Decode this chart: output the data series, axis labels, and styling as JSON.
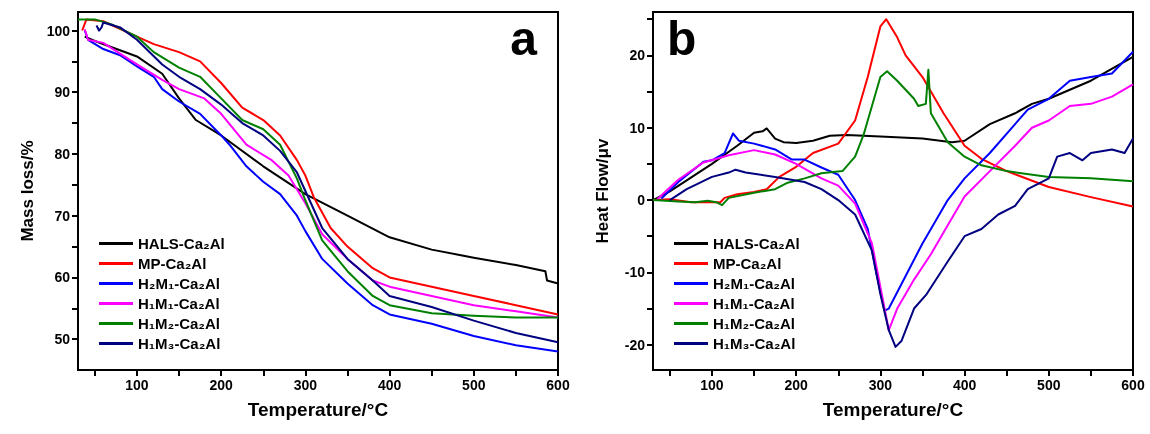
{
  "chart_data": [
    {
      "type": "line",
      "xlabel": "Temperature/°C",
      "ylabel": "Mass loss/%",
      "annotations": [
        "a"
      ],
      "legend": "bottom left",
      "grid": false,
      "marker": "none",
      "line_style": "solid",
      "xlim": [
        30,
        600
      ],
      "xticks": [
        {
          "value": 50,
          "label": null
        },
        100,
        {
          "value": 150,
          "label": null
        },
        200,
        {
          "value": 250,
          "label": null
        },
        300,
        {
          "value": 350,
          "label": null
        },
        400,
        {
          "value": 450,
          "label": null
        },
        500,
        {
          "value": 550,
          "label": null
        },
        600
      ],
      "ylim": [
        45,
        103
      ],
      "yticks": [
        50,
        {
          "value": 55,
          "label": null
        },
        60,
        {
          "value": 65,
          "label": null
        },
        70,
        {
          "value": 75,
          "label": null
        },
        80,
        {
          "value": 85,
          "label": null
        },
        90,
        {
          "value": 95,
          "label": null
        },
        100
      ],
      "series": [
        {
          "name": "HALS-Ca₂Al",
          "color": "#000000",
          "x": [
            38,
            50,
            100,
            130,
            150,
            170,
            200,
            250,
            300,
            350,
            400,
            450,
            500,
            550,
            585,
            587,
            600
          ],
          "values": [
            99,
            98.3,
            95.8,
            93,
            89,
            85.5,
            83,
            78,
            73.5,
            70,
            66.5,
            64.5,
            63.2,
            62,
            61,
            59.5,
            59
          ]
        },
        {
          "name": "MP-Ca₂Al",
          "color": "#ff0000",
          "x": [
            35,
            40,
            60,
            100,
            120,
            150,
            175,
            200,
            225,
            250,
            270,
            290,
            300,
            310,
            330,
            350,
            380,
            400,
            450,
            500,
            550,
            600
          ],
          "values": [
            100,
            101.8,
            101.5,
            99,
            97.8,
            96.5,
            95,
            91.5,
            87.5,
            85.5,
            83,
            79,
            76.5,
            73,
            68,
            65,
            61.5,
            60,
            58.5,
            57,
            55.5,
            54
          ]
        },
        {
          "name": "H₂M₁-Ca₂Al",
          "color": "#0000ff",
          "x": [
            38,
            42,
            60,
            80,
            100,
            120,
            130,
            150,
            175,
            200,
            210,
            230,
            250,
            270,
            290,
            300,
            320,
            350,
            380,
            400,
            450,
            500,
            550,
            600
          ],
          "values": [
            100,
            98.5,
            97,
            96,
            94.2,
            92.5,
            90.5,
            88.5,
            86.5,
            83,
            81.5,
            78,
            75.5,
            73.5,
            70,
            67.5,
            63,
            59,
            55.5,
            54,
            52.5,
            50.5,
            49,
            48
          ]
        },
        {
          "name": "H₁M₁-Ca₂Al",
          "color": "#ff00ff",
          "x": [
            38,
            42,
            60,
            100,
            130,
            150,
            180,
            200,
            230,
            260,
            280,
            300,
            320,
            350,
            380,
            400,
            450,
            500,
            550,
            600
          ],
          "values": [
            100.2,
            98.5,
            98,
            94.5,
            92,
            90.5,
            89,
            86.5,
            81.5,
            79,
            76.5,
            72,
            67,
            63,
            59.5,
            58.5,
            57,
            55.5,
            54.5,
            53.5
          ]
        },
        {
          "name": "H₁M₂-Ca₂Al",
          "color": "#008000",
          "x": [
            30,
            50,
            70,
            100,
            120,
            150,
            175,
            200,
            225,
            250,
            270,
            290,
            300,
            320,
            350,
            380,
            400,
            450,
            500,
            550,
            600
          ],
          "values": [
            101.8,
            101.8,
            101,
            99,
            96.5,
            94,
            92.5,
            89,
            85.5,
            84,
            81.5,
            76,
            72.5,
            66,
            61,
            57,
            55.5,
            54.2,
            53.8,
            53.5,
            53.5
          ]
        },
        {
          "name": "H₁M₃-Ca₂Al",
          "color": "#000080",
          "x": [
            52,
            55,
            58,
            60,
            80,
            100,
            130,
            150,
            175,
            200,
            225,
            250,
            270,
            290,
            300,
            320,
            350,
            380,
            400,
            450,
            500,
            550,
            600
          ],
          "values": [
            100.8,
            100,
            100.5,
            101.3,
            100.5,
            98.5,
            94.5,
            92.5,
            90.5,
            88,
            85,
            83,
            80.5,
            77,
            74,
            68,
            63,
            59.5,
            57,
            55.2,
            53,
            51,
            49.5
          ]
        }
      ]
    },
    {
      "type": "line",
      "xlabel": "Temperature/°C",
      "ylabel": "Heat Flow/μv",
      "annotations": [
        "b"
      ],
      "legend": "bottom left",
      "grid": false,
      "marker": "none",
      "line_style": "solid",
      "xlim": [
        30,
        600
      ],
      "xticks": [
        {
          "value": 50,
          "label": null
        },
        100,
        {
          "value": 150,
          "label": null
        },
        200,
        {
          "value": 250,
          "label": null
        },
        300,
        {
          "value": 350,
          "label": null
        },
        400,
        {
          "value": 450,
          "label": null
        },
        500,
        {
          "value": 550,
          "label": null
        },
        600
      ],
      "ylim": [
        -23.5,
        26
      ],
      "yticks": [
        -20,
        {
          "value": -15,
          "label": null
        },
        -10,
        {
          "value": -5,
          "label": null
        },
        0,
        {
          "value": 5,
          "label": null
        },
        10,
        {
          "value": 15,
          "label": null
        },
        20,
        {
          "value": 25,
          "label": null
        }
      ],
      "series": [
        {
          "name": "HALS-Ca₂Al",
          "color": "#000000",
          "x": [
            30,
            50,
            100,
            130,
            150,
            160,
            165,
            175,
            185,
            200,
            220,
            240,
            260,
            300,
            350,
            385,
            400,
            430,
            460,
            480,
            500,
            550,
            600
          ],
          "values": [
            0,
            1.2,
            5,
            7.5,
            9.3,
            9.5,
            9.9,
            8.5,
            8,
            7.9,
            8.2,
            8.9,
            9,
            8.8,
            8.5,
            8,
            8.2,
            10.5,
            12,
            13.3,
            14,
            16.5,
            19.8
          ]
        },
        {
          "name": "MP-Ca₂Al",
          "color": "#ff0000",
          "x": [
            30,
            50,
            75,
            100,
            110,
            115,
            130,
            150,
            165,
            180,
            200,
            220,
            250,
            270,
            285,
            300,
            307,
            320,
            330,
            350,
            375,
            400,
            420,
            450,
            500,
            550,
            600
          ],
          "values": [
            0,
            0.1,
            -0.3,
            -0.3,
            -0.3,
            0.3,
            0.8,
            1.1,
            1.5,
            3.2,
            4.6,
            6.5,
            7.8,
            11,
            17,
            24,
            25,
            22.5,
            20,
            17,
            12,
            7.5,
            5.7,
            4,
            1.8,
            0.4,
            -0.9
          ]
        },
        {
          "name": "H₂M₁-Ca₂Al",
          "color": "#0000ff",
          "x": [
            40,
            60,
            90,
            100,
            115,
            125,
            132,
            150,
            175,
            195,
            210,
            230,
            250,
            270,
            285,
            295,
            305,
            310,
            330,
            350,
            380,
            400,
            430,
            460,
            475,
            500,
            525,
            550,
            575,
            600
          ],
          "values": [
            0.2,
            2.5,
            5.3,
            5.5,
            6.5,
            9.2,
            8.2,
            7.8,
            7,
            5.6,
            5.6,
            4.5,
            3.5,
            0,
            -4,
            -10,
            -15.3,
            -15,
            -10.5,
            -6,
            0,
            3,
            6.5,
            10.5,
            12.5,
            14,
            16.5,
            17,
            17.5,
            20.5
          ]
        },
        {
          "name": "H₁M₁-Ca₂Al",
          "color": "#ff00ff",
          "x": [
            35,
            60,
            90,
            120,
            150,
            175,
            200,
            230,
            250,
            270,
            290,
            300,
            310,
            320,
            340,
            360,
            380,
            400,
            430,
            460,
            480,
            500,
            525,
            550,
            575,
            600
          ],
          "values": [
            0.1,
            2.8,
            5.2,
            6.2,
            6.9,
            6.3,
            5,
            3,
            2,
            -0.5,
            -6,
            -12,
            -18,
            -15,
            -11,
            -7.5,
            -3.5,
            0.5,
            4,
            7.5,
            10,
            11,
            13,
            13.3,
            14.3,
            16
          ]
        },
        {
          "name": "H₁M₂-Ca₂Al",
          "color": "#008000",
          "x": [
            30,
            60,
            80,
            95,
            105,
            112,
            120,
            150,
            175,
            190,
            210,
            230,
            255,
            270,
            280,
            290,
            300,
            308,
            320,
            340,
            345,
            354,
            357,
            360,
            380,
            400,
            420,
            450,
            500,
            550,
            600
          ],
          "values": [
            0,
            -0.2,
            -0.3,
            -0.1,
            -0.3,
            -0.7,
            0.3,
            1,
            1.5,
            2.4,
            3,
            3.7,
            4,
            6,
            9,
            13,
            17,
            17.8,
            16.5,
            14,
            13,
            13.3,
            18,
            12,
            8,
            6,
            4.8,
            4,
            3.2,
            3,
            2.6
          ]
        },
        {
          "name": "H₁M₃-Ca₂Al",
          "color": "#000080",
          "x": [
            50,
            70,
            100,
            120,
            128,
            140,
            175,
            210,
            230,
            250,
            270,
            290,
            300,
            310,
            318,
            325,
            340,
            355,
            380,
            400,
            420,
            440,
            460,
            475,
            500,
            510,
            525,
            540,
            550,
            575,
            590,
            600
          ],
          "values": [
            0,
            1.5,
            3.2,
            3.8,
            4.2,
            3.8,
            3.2,
            2.5,
            1.5,
            0,
            -2,
            -7,
            -13,
            -18,
            -20.3,
            -19.5,
            -15,
            -13,
            -8.5,
            -5,
            -4,
            -2,
            -0.8,
            1.5,
            3,
            6,
            6.5,
            5.5,
            6.5,
            7,
            6.5,
            8.5
          ]
        }
      ]
    }
  ]
}
